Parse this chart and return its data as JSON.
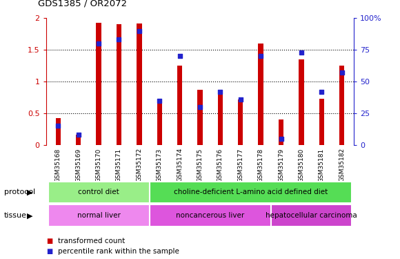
{
  "title": "GDS1385 / OR2072",
  "samples": [
    "GSM35168",
    "GSM35169",
    "GSM35170",
    "GSM35171",
    "GSM35172",
    "GSM35173",
    "GSM35174",
    "GSM35175",
    "GSM35176",
    "GSM35177",
    "GSM35178",
    "GSM35179",
    "GSM35180",
    "GSM35181",
    "GSM35182"
  ],
  "transformed_count": [
    0.42,
    0.16,
    1.93,
    1.9,
    1.92,
    0.68,
    1.25,
    0.87,
    0.87,
    0.72,
    1.6,
    0.4,
    1.35,
    0.73,
    1.25
  ],
  "percentile_rank": [
    15,
    8,
    80,
    83,
    90,
    35,
    70,
    30,
    42,
    36,
    70,
    5,
    73,
    42,
    57
  ],
  "bar_color": "#cc0000",
  "dot_color": "#2222cc",
  "bar_width": 0.25,
  "ylim_left": [
    0,
    2
  ],
  "ylim_right": [
    0,
    100
  ],
  "yticks_left": [
    0,
    0.5,
    1.0,
    1.5,
    2.0
  ],
  "ytick_labels_left": [
    "0",
    "0.5",
    "1",
    "1.5",
    "2"
  ],
  "yticks_right": [
    0,
    25,
    50,
    75,
    100
  ],
  "ytick_labels_right": [
    "0",
    "25",
    "50",
    "75",
    "100%"
  ],
  "protocol_groups": [
    {
      "label": "control diet",
      "start": 0,
      "end": 4,
      "color": "#99ee88"
    },
    {
      "label": "choline-deficient L-amino acid defined diet",
      "start": 5,
      "end": 14,
      "color": "#55dd55"
    }
  ],
  "tissue_groups": [
    {
      "label": "normal liver",
      "start": 0,
      "end": 4,
      "color": "#ee88ee"
    },
    {
      "label": "noncancerous liver",
      "start": 5,
      "end": 10,
      "color": "#dd55dd"
    },
    {
      "label": "hepatocellular carcinoma",
      "start": 11,
      "end": 14,
      "color": "#cc44cc"
    }
  ],
  "legend_items": [
    {
      "label": "transformed count",
      "color": "#cc0000"
    },
    {
      "label": "percentile rank within the sample",
      "color": "#2222cc"
    }
  ],
  "protocol_label": "protocol",
  "tissue_label": "tissue",
  "left_axis_color": "#cc0000",
  "right_axis_color": "#2222cc",
  "plot_bg_color": "#ffffff",
  "xticklabel_bg": "#cccccc",
  "dot_marker_size": 25
}
